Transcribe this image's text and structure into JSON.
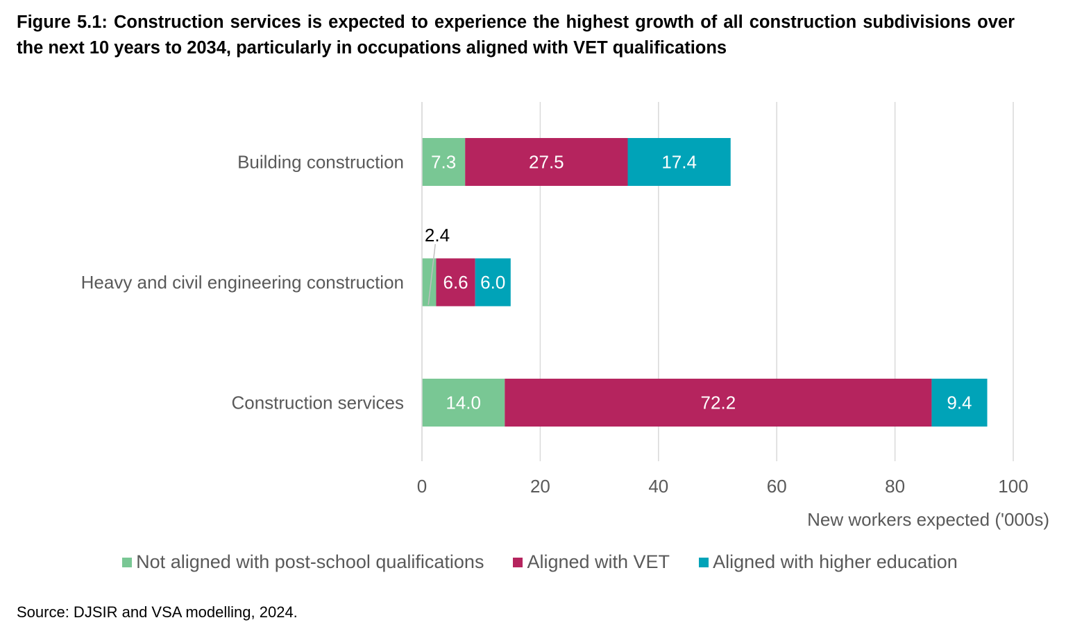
{
  "title": "Figure 5.1: Construction services is expected to experience the highest growth of all construction subdivisions over the next 10 years to 2034, particularly in occupations aligned with VET qualifications",
  "source": "Source:  DJSIR and VSA modelling, 2024.",
  "chart_data": {
    "type": "bar",
    "orientation": "horizontal",
    "stacked": true,
    "categories": [
      "Building construction",
      "Heavy and civil engineering construction",
      "Construction services"
    ],
    "series": [
      {
        "name": "Not aligned with post-school qualifications",
        "color": "#79C794",
        "values": [
          7.3,
          2.4,
          14.0
        ]
      },
      {
        "name": "Aligned with VET",
        "color": "#B5245E",
        "values": [
          27.5,
          6.6,
          72.2
        ]
      },
      {
        "name": "Aligned with higher education",
        "color": "#00A3B8",
        "values": [
          17.4,
          6.0,
          9.4
        ]
      }
    ],
    "xlabel": "New workers expected ('000s)",
    "xlim": [
      0,
      100
    ],
    "xticks": [
      "0",
      "20",
      "40",
      "60",
      "80",
      "100"
    ],
    "grid": "vertical",
    "legend": "bottom"
  }
}
